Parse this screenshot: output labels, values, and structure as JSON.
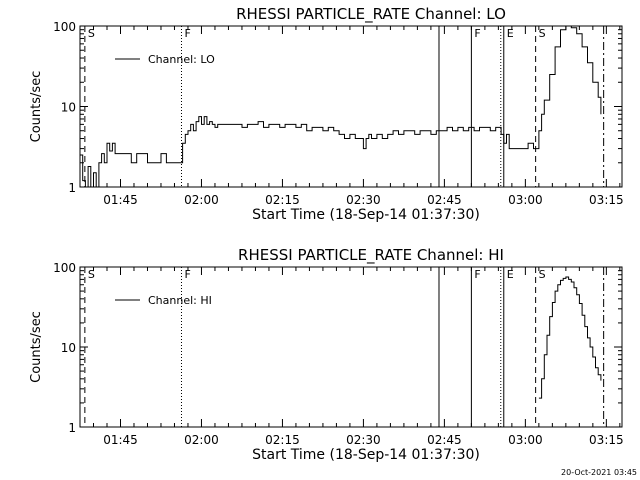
{
  "footer_date": "20-Oct-2021 03:45",
  "chart_data": [
    {
      "type": "line",
      "title": "RHESSI PARTICLE_RATE Channel: LO",
      "xlabel": "Start Time (18-Sep-14 01:37:30)",
      "ylabel": "Counts/sec",
      "yscale": "log",
      "ylim": [
        1,
        100
      ],
      "xlim_minutes": [
        0,
        100.4
      ],
      "x_ticks": [
        {
          "label": "01:45",
          "min": 7.5
        },
        {
          "label": "02:00",
          "min": 22.5
        },
        {
          "label": "02:15",
          "min": 37.5
        },
        {
          "label": "02:30",
          "min": 52.5
        },
        {
          "label": "02:45",
          "min": 67.5
        },
        {
          "label": "03:00",
          "min": 82.5
        },
        {
          "label": "03:15",
          "min": 97.5
        }
      ],
      "y_ticks": [
        "1",
        "10",
        "100"
      ],
      "legend": {
        "label": "Channel: LO",
        "placement": "top-left"
      },
      "markers": [
        {
          "min": 0.9,
          "label": "S",
          "style": "dashed"
        },
        {
          "min": 18.8,
          "label": "F",
          "style": "dotted"
        },
        {
          "min": 66.5,
          "label": "",
          "style": "solid"
        },
        {
          "min": 72.5,
          "label": "F",
          "style": "solid"
        },
        {
          "min": 78.5,
          "label": "E",
          "style": "dotted-solid"
        },
        {
          "min": 84.4,
          "label": "S",
          "style": "dashed"
        },
        {
          "min": 97.0,
          "label": "",
          "style": "dashdot"
        }
      ],
      "series": [
        {
          "x": [
            0,
            0.5,
            1,
            1.5,
            2,
            2.5,
            3,
            3.5,
            4,
            4.5,
            5,
            5.5,
            6,
            6.5,
            7,
            7.5,
            8,
            8.5,
            9,
            9.5,
            10,
            10.5,
            11,
            11.5,
            12,
            12.5,
            13,
            13.5,
            14,
            14.5,
            15,
            15.5,
            16,
            16.5,
            17,
            17.5,
            18,
            18.5,
            19,
            19.5,
            20,
            20.5,
            21,
            21.5,
            22,
            22.5,
            23,
            23.5,
            24,
            24.5,
            25,
            25.5,
            26,
            26.5,
            27,
            28,
            29,
            30,
            31,
            32,
            33,
            34,
            35,
            36,
            37,
            38,
            39,
            40,
            41,
            42,
            43,
            44,
            45,
            46,
            47,
            48,
            49,
            50,
            51,
            52,
            52.5,
            53,
            53.5,
            54,
            55,
            56,
            57,
            58,
            59,
            60,
            61,
            62,
            63,
            64,
            65,
            66,
            67,
            68,
            69,
            70,
            71,
            72,
            73,
            74,
            75,
            76,
            77,
            78,
            78.5,
            79,
            79.5,
            80,
            81,
            82,
            83,
            84,
            84.5,
            85,
            85.5,
            86,
            87,
            88,
            89,
            90,
            91,
            92,
            93,
            94,
            95,
            96,
            96.5
          ],
          "y": [
            2.5,
            1.2,
            1.0,
            1.8,
            1.0,
            1.5,
            1.0,
            2.0,
            2.6,
            2.0,
            3.5,
            2.8,
            3.5,
            2.6,
            2.6,
            2.6,
            2.6,
            2.6,
            2.6,
            2.0,
            2.0,
            2.6,
            2.6,
            2.6,
            2.6,
            2.0,
            2.0,
            2.0,
            2.0,
            2.0,
            2.6,
            2.6,
            2.0,
            2.0,
            2.0,
            2.0,
            2.0,
            2.0,
            3.5,
            4.5,
            5.0,
            6.0,
            5.0,
            6.5,
            7.5,
            6.0,
            7.5,
            6.0,
            6.5,
            6.0,
            5.5,
            6.0,
            6.0,
            6.0,
            6.0,
            6.0,
            6.0,
            5.5,
            6.0,
            6.0,
            6.5,
            5.5,
            6.0,
            6.0,
            5.5,
            6.0,
            6.0,
            5.5,
            6.0,
            5.0,
            5.5,
            5.5,
            5.0,
            5.5,
            5.0,
            4.5,
            4.0,
            4.5,
            4.0,
            4.0,
            3.0,
            4.0,
            4.5,
            4.0,
            4.5,
            4.0,
            4.5,
            5.0,
            4.5,
            5.0,
            5.0,
            4.5,
            5.0,
            5.0,
            4.5,
            5.0,
            5.0,
            5.5,
            5.0,
            5.5,
            5.0,
            5.5,
            5.0,
            5.5,
            5.5,
            5.0,
            5.5,
            4.5,
            3.5,
            4.5,
            3.0,
            3.0,
            3.0,
            3.0,
            3.5,
            3.0,
            3.0,
            5.0,
            8.0,
            12.0,
            25.0,
            55.0,
            90.0,
            100.0,
            95.0,
            80.0,
            55.0,
            35.0,
            20.0,
            13.0,
            8.0
          ]
        }
      ]
    },
    {
      "type": "line",
      "title": "RHESSI PARTICLE_RATE Channel: HI",
      "xlabel": "Start Time (18-Sep-14 01:37:30)",
      "ylabel": "Counts/sec",
      "yscale": "log",
      "ylim": [
        1,
        100
      ],
      "xlim_minutes": [
        0,
        100.4
      ],
      "x_ticks": [
        {
          "label": "01:45",
          "min": 7.5
        },
        {
          "label": "02:00",
          "min": 22.5
        },
        {
          "label": "02:15",
          "min": 37.5
        },
        {
          "label": "02:30",
          "min": 52.5
        },
        {
          "label": "02:45",
          "min": 67.5
        },
        {
          "label": "03:00",
          "min": 82.5
        },
        {
          "label": "03:15",
          "min": 97.5
        }
      ],
      "y_ticks": [
        "1",
        "10",
        "100"
      ],
      "legend": {
        "label": "Channel: HI",
        "placement": "top-left"
      },
      "markers": [
        {
          "min": 0.9,
          "label": "S",
          "style": "dashed"
        },
        {
          "min": 18.8,
          "label": "F",
          "style": "dotted"
        },
        {
          "min": 66.5,
          "label": "",
          "style": "solid"
        },
        {
          "min": 72.5,
          "label": "F",
          "style": "solid"
        },
        {
          "min": 78.5,
          "label": "E",
          "style": "dotted-solid"
        },
        {
          "min": 84.4,
          "label": "S",
          "style": "dashed"
        },
        {
          "min": 97.0,
          "label": "",
          "style": "dashdot"
        }
      ],
      "series": [
        {
          "x": [
            85.0,
            85.5,
            86,
            86.5,
            87,
            87.5,
            88,
            88.5,
            89,
            89.5,
            90,
            90.5,
            91,
            91.5,
            92,
            92.5,
            93,
            93.5,
            94,
            94.5,
            95,
            95.5,
            96,
            96.5
          ],
          "y": [
            2.3,
            4.0,
            8.0,
            14.0,
            24.0,
            36.0,
            50.0,
            60.0,
            68.0,
            72.0,
            75.0,
            70.0,
            65.0,
            55.0,
            45.0,
            35.0,
            25.0,
            18.0,
            13.0,
            10.0,
            7.5,
            5.5,
            4.5,
            3.8
          ]
        }
      ]
    }
  ]
}
